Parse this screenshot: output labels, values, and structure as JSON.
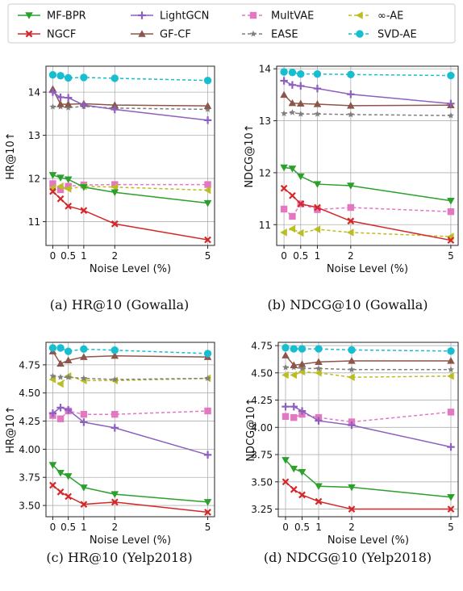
{
  "legend": [
    {
      "name": "MF-BPR",
      "color": "#2ca02c",
      "marker": "tri-down",
      "dash": false
    },
    {
      "name": "LightGCN",
      "color": "#8c5fc0",
      "marker": "plus",
      "dash": false
    },
    {
      "name": "MultVAE",
      "color": "#e377c2",
      "marker": "square",
      "dash": true
    },
    {
      "name": "∞-AE",
      "color": "#bcbd22",
      "marker": "tri-left",
      "dash": true
    },
    {
      "name": "NGCF",
      "color": "#d62728",
      "marker": "x",
      "dash": false
    },
    {
      "name": "GF-CF",
      "color": "#8c564b",
      "marker": "tri-up",
      "dash": false
    },
    {
      "name": "EASE",
      "color": "#7f7f7f",
      "marker": "star",
      "dash": true
    },
    {
      "name": "SVD-AE",
      "color": "#17becf",
      "marker": "circle",
      "dash": true
    }
  ],
  "chart_data": [
    {
      "type": "line",
      "caption": "(a) HR@10 (Gowalla)",
      "xlabel": "Noise Level (%)",
      "ylabel": "HR@10↑",
      "x": [
        0,
        0.25,
        0.5,
        1,
        2,
        5
      ],
      "xticks": [
        "0",
        "0.5",
        "1",
        "2",
        "5"
      ],
      "ylim": [
        10.45,
        14.6
      ],
      "yticks": [
        11,
        12,
        13,
        14
      ],
      "ytick_labels": [
        "11",
        "12",
        "13",
        "14"
      ],
      "series": [
        {
          "name": "MF-BPR",
          "values": [
            12.08,
            12.02,
            11.98,
            11.8,
            11.68,
            11.43
          ]
        },
        {
          "name": "NGCF",
          "values": [
            11.7,
            11.53,
            11.36,
            11.26,
            10.95,
            10.58
          ]
        },
        {
          "name": "LightGCN",
          "values": [
            14.0,
            13.88,
            13.87,
            13.7,
            13.6,
            13.35
          ]
        },
        {
          "name": "GF-CF",
          "values": [
            14.07,
            13.72,
            13.72,
            13.73,
            13.7,
            13.68
          ]
        },
        {
          "name": "MultVAE",
          "values": [
            11.88,
            11.74,
            11.82,
            11.85,
            11.86,
            11.86
          ]
        },
        {
          "name": "EASE",
          "values": [
            13.66,
            13.66,
            13.64,
            13.67,
            13.63,
            13.6
          ]
        },
        {
          "name": "∞-AE",
          "values": [
            11.78,
            11.82,
            11.76,
            11.82,
            11.8,
            11.73
          ]
        },
        {
          "name": "SVD-AE",
          "values": [
            14.4,
            14.38,
            14.33,
            14.34,
            14.32,
            14.27
          ]
        }
      ]
    },
    {
      "type": "line",
      "caption": "(b) NDCG@10 (Gowalla)",
      "xlabel": "Noise Level (%)",
      "ylabel": "NDCG@10↑",
      "x": [
        0,
        0.25,
        0.5,
        1,
        2,
        5
      ],
      "xticks": [
        "0",
        "0.5",
        "1",
        "2",
        "5"
      ],
      "ylim": [
        10.6,
        14.05
      ],
      "yticks": [
        11,
        12,
        13,
        14
      ],
      "ytick_labels": [
        "11",
        "12",
        "13",
        "14"
      ],
      "series": [
        {
          "name": "MF-BPR",
          "values": [
            12.1,
            12.08,
            11.93,
            11.78,
            11.75,
            11.46
          ]
        },
        {
          "name": "NGCF",
          "values": [
            11.7,
            11.56,
            11.4,
            11.33,
            11.07,
            10.7
          ]
        },
        {
          "name": "LightGCN",
          "values": [
            13.77,
            13.69,
            13.67,
            13.62,
            13.51,
            13.33
          ]
        },
        {
          "name": "GF-CF",
          "values": [
            13.5,
            13.34,
            13.33,
            13.32,
            13.29,
            13.3
          ]
        },
        {
          "name": "MultVAE",
          "values": [
            11.3,
            11.16,
            11.4,
            11.29,
            11.33,
            11.25
          ]
        },
        {
          "name": "EASE",
          "values": [
            13.14,
            13.16,
            13.13,
            13.13,
            13.12,
            13.1
          ]
        },
        {
          "name": "∞-AE",
          "values": [
            10.85,
            10.92,
            10.84,
            10.91,
            10.85,
            10.77
          ]
        },
        {
          "name": "SVD-AE",
          "values": [
            13.94,
            13.93,
            13.9,
            13.9,
            13.89,
            13.87
          ]
        }
      ]
    },
    {
      "type": "line",
      "caption": "(c) HR@10 (Yelp2018)",
      "xlabel": "Noise Level (%)",
      "ylabel": "HR@10↑",
      "x": [
        0,
        0.25,
        0.5,
        1,
        2,
        5
      ],
      "xticks": [
        "0",
        "0.5",
        "1",
        "2",
        "5"
      ],
      "ylim": [
        3.4,
        4.95
      ],
      "yticks": [
        3.5,
        3.75,
        4.0,
        4.25,
        4.5,
        4.75
      ],
      "ytick_labels": [
        "3.50",
        "3.75",
        "4.00",
        "4.25",
        "4.50",
        "4.75"
      ],
      "series": [
        {
          "name": "MF-BPR",
          "values": [
            3.86,
            3.79,
            3.76,
            3.66,
            3.6,
            3.53
          ]
        },
        {
          "name": "NGCF",
          "values": [
            3.68,
            3.62,
            3.58,
            3.51,
            3.53,
            3.44
          ]
        },
        {
          "name": "LightGCN",
          "values": [
            4.32,
            4.37,
            4.35,
            4.24,
            4.19,
            3.95
          ]
        },
        {
          "name": "GF-CF",
          "values": [
            4.87,
            4.76,
            4.79,
            4.82,
            4.83,
            4.82
          ]
        },
        {
          "name": "MultVAE",
          "values": [
            4.3,
            4.27,
            4.34,
            4.31,
            4.31,
            4.34
          ]
        },
        {
          "name": "EASE",
          "values": [
            4.65,
            4.64,
            4.64,
            4.63,
            4.62,
            4.63
          ]
        },
        {
          "name": "∞-AE",
          "values": [
            4.62,
            4.58,
            4.65,
            4.61,
            4.61,
            4.63
          ]
        },
        {
          "name": "SVD-AE",
          "values": [
            4.9,
            4.9,
            4.87,
            4.89,
            4.88,
            4.85
          ]
        }
      ]
    },
    {
      "type": "line",
      "caption": "(d) NDCG@10 (Yelp2018)",
      "xlabel": "Noise Level (%)",
      "ylabel": "NDCG@10↑",
      "x": [
        0,
        0.25,
        0.5,
        1,
        2,
        5
      ],
      "xticks": [
        "0",
        "0.5",
        "1",
        "2",
        "5"
      ],
      "ylim": [
        3.18,
        4.78
      ],
      "yticks": [
        3.25,
        3.5,
        3.75,
        4.0,
        4.25,
        4.5,
        4.75
      ],
      "ytick_labels": [
        "3.25",
        "3.50",
        "3.75",
        "4.00",
        "4.25",
        "4.50",
        "4.75"
      ],
      "series": [
        {
          "name": "MF-BPR",
          "values": [
            3.7,
            3.62,
            3.59,
            3.46,
            3.45,
            3.36
          ]
        },
        {
          "name": "NGCF",
          "values": [
            3.5,
            3.43,
            3.38,
            3.32,
            3.25,
            3.25
          ]
        },
        {
          "name": "LightGCN",
          "values": [
            4.19,
            4.19,
            4.15,
            4.06,
            4.02,
            3.82
          ]
        },
        {
          "name": "GF-CF",
          "values": [
            4.66,
            4.57,
            4.58,
            4.6,
            4.61,
            4.61
          ]
        },
        {
          "name": "MultVAE",
          "values": [
            4.1,
            4.09,
            4.12,
            4.09,
            4.05,
            4.14
          ]
        },
        {
          "name": "EASE",
          "values": [
            4.55,
            4.55,
            4.54,
            4.54,
            4.53,
            4.53
          ]
        },
        {
          "name": "∞-AE",
          "values": [
            4.48,
            4.48,
            4.51,
            4.5,
            4.46,
            4.47
          ]
        },
        {
          "name": "SVD-AE",
          "values": [
            4.73,
            4.72,
            4.72,
            4.72,
            4.71,
            4.7
          ]
        }
      ]
    }
  ]
}
